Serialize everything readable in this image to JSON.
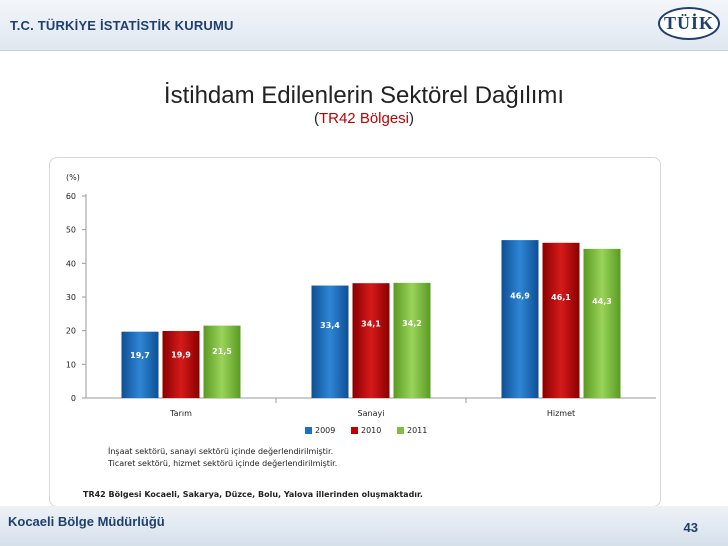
{
  "header": {
    "org": "T.C. TÜRKİYE İSTATİSTİK KURUMU",
    "logo_text": "TÜİK"
  },
  "slide": {
    "title": "İstihdam Edilenlerin Sektörel Dağılımı",
    "subtitle_open": "(",
    "subtitle_region": "TR42 Bölgesi",
    "subtitle_close": ")"
  },
  "chart_data": {
    "type": "bar",
    "unit_label": "(%)",
    "categories": [
      "Tarım",
      "Sanayi",
      "Hizmet"
    ],
    "series": [
      {
        "name": "2009",
        "color": "#1f6fbf",
        "values": [
          19.7,
          33.4,
          46.9
        ]
      },
      {
        "name": "2010",
        "color": "#c00000",
        "values": [
          19.9,
          34.1,
          46.1
        ]
      },
      {
        "name": "2011",
        "color": "#7fbf3f",
        "values": [
          21.5,
          34.2,
          44.3
        ]
      }
    ],
    "data_labels": [
      [
        "19,7",
        "33,4",
        "46,9"
      ],
      [
        "19,9",
        "34,1",
        "46,1"
      ],
      [
        "21,5",
        "34,2",
        "44,3"
      ]
    ],
    "yticks": [
      "0",
      "10",
      "20",
      "30",
      "40",
      "50",
      "60"
    ],
    "ylim": [
      0,
      60
    ],
    "legend": "bottom-center",
    "grid": false,
    "notes": [
      "İnşaat sektörü, sanayi sektörü içinde değerlendirilmiştir.",
      "Ticaret  sektörü, hizmet sektörü içinde değerlendirilmiştir."
    ],
    "footnote": "TR42 Bölgesi Kocaeli, Sakarya, Düzce, Bolu, Yalova illerinden oluşmaktadır."
  },
  "footer": {
    "region": "Kocaeli Bölge Müdürlüğü",
    "page": "43"
  }
}
